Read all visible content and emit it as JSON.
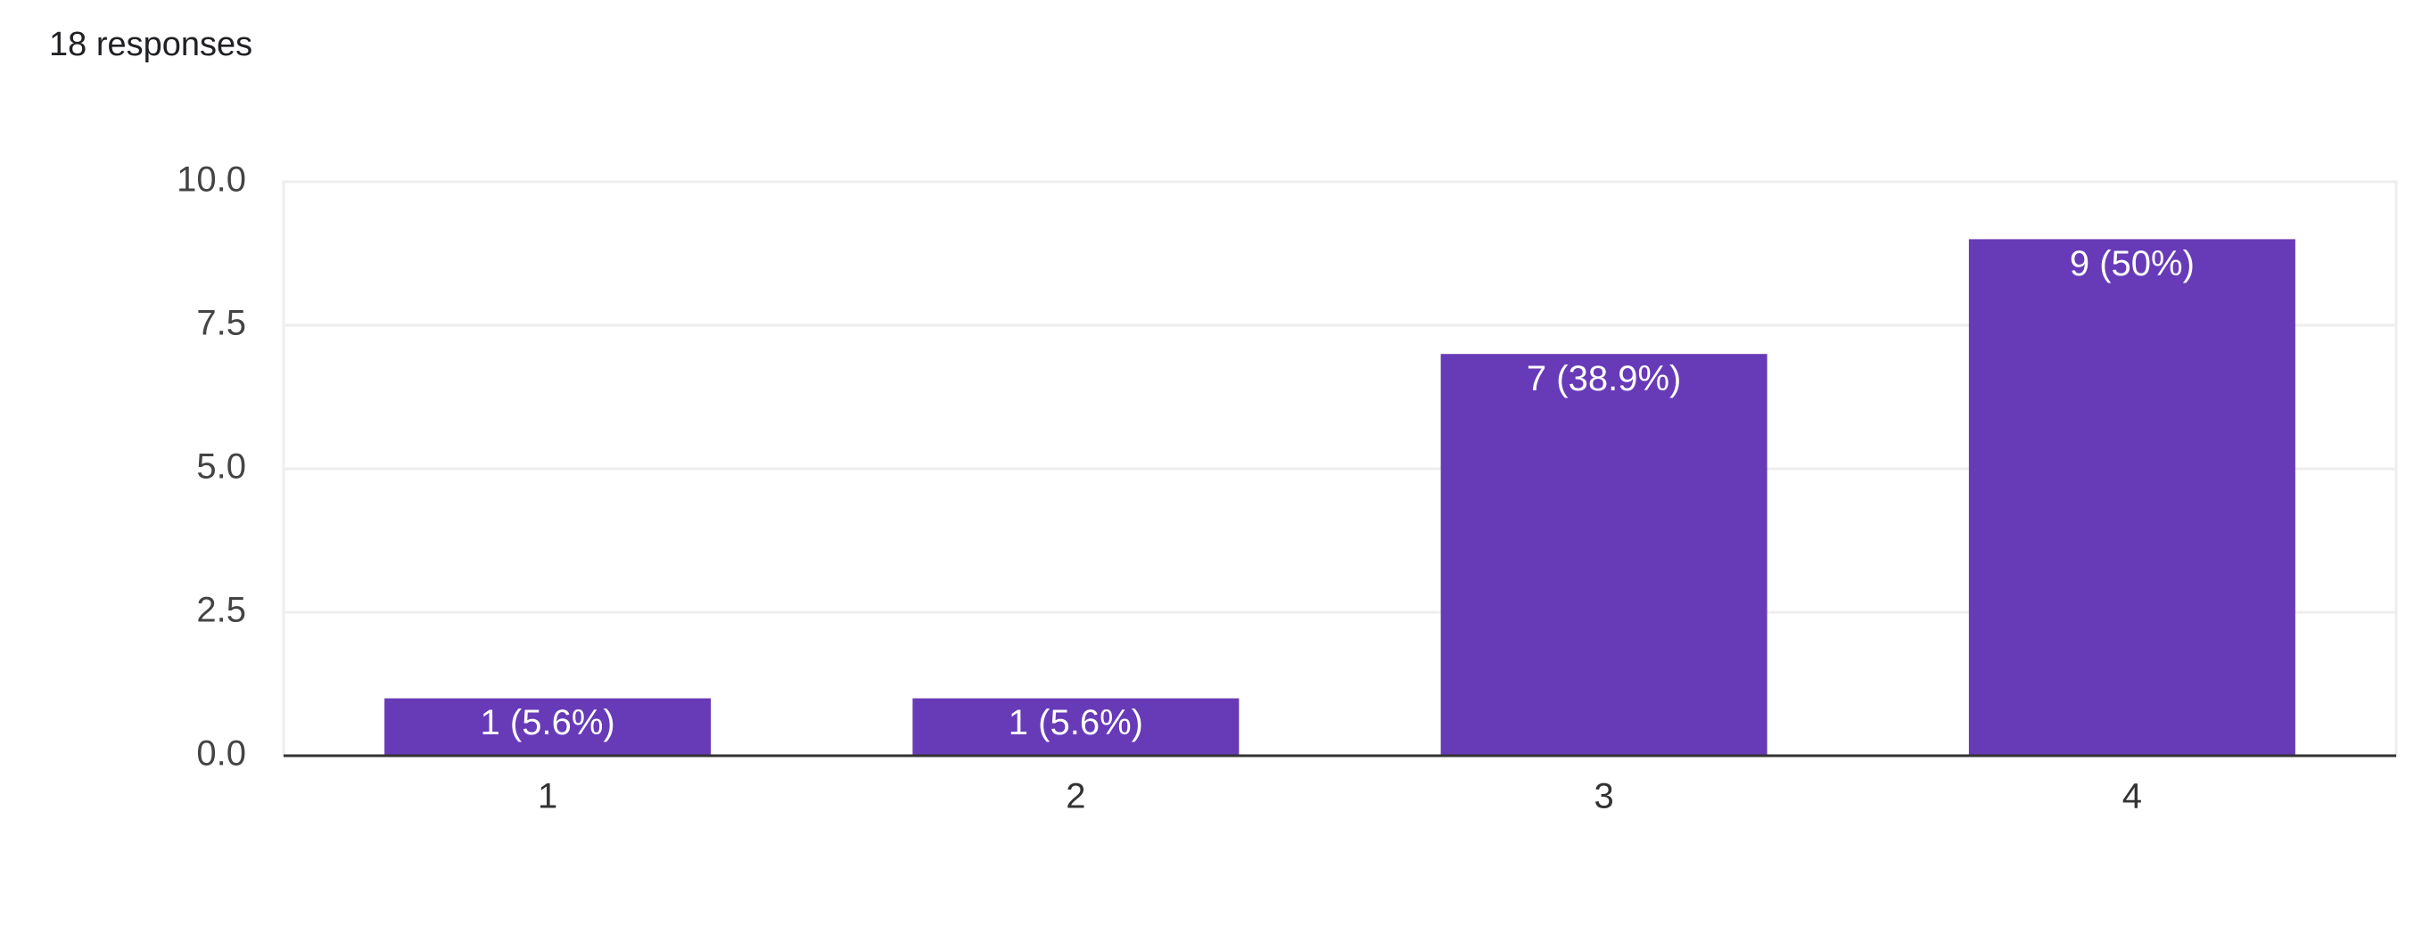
{
  "chart_data": {
    "type": "bar",
    "title": "18 responses",
    "categories": [
      "1",
      "2",
      "3",
      "4"
    ],
    "values": [
      1,
      1,
      7,
      9
    ],
    "value_labels": [
      "1 (5.6%)",
      "1 (5.6%)",
      "7 (38.9%)",
      "9 (50%)"
    ],
    "color": "#673ab7",
    "ylim": [
      0,
      10
    ],
    "yticks": [
      {
        "value": 0,
        "label": "0.0"
      },
      2.5,
      {
        "value": 5,
        "label": "5.0"
      },
      7.5,
      {
        "value": 10,
        "label": "10.0"
      }
    ],
    "grid": true
  }
}
